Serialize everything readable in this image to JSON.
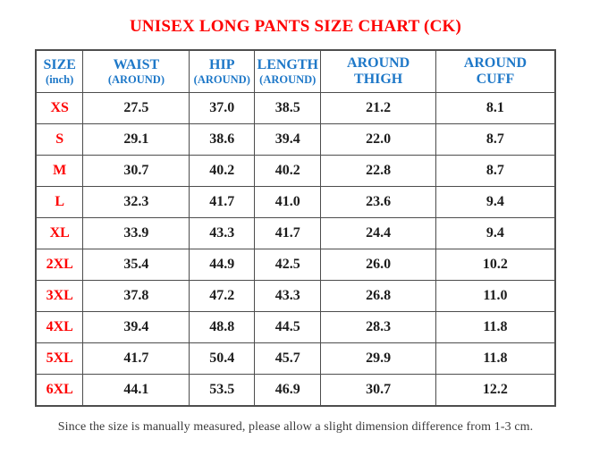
{
  "title": "UNISEX LONG PANTS SIZE CHART (CK)",
  "footer_note": "Since the size is manually measured, please allow a slight dimension difference from 1-3 cm.",
  "colors": {
    "title_red": "#fe0000",
    "header_blue": "#1e78c8",
    "value_black": "#1d1d1d",
    "border_gray": "#4d4d4d",
    "background": "#ffffff"
  },
  "table": {
    "columns": [
      {
        "line1": "SIZE",
        "line2": "(inch)"
      },
      {
        "line1": "WAIST",
        "line2": "(AROUND)"
      },
      {
        "line1": "HIP",
        "line2": "(AROUND)"
      },
      {
        "line1": "LENGTH",
        "line2": "(AROUND)"
      },
      {
        "line1": "AROUND",
        "line2": "THIGH"
      },
      {
        "line1": "AROUND",
        "line2": "CUFF"
      }
    ],
    "rows": [
      {
        "size": "XS",
        "values": [
          "27.5",
          "37.0",
          "38.5",
          "21.2",
          "8.1"
        ]
      },
      {
        "size": "S",
        "values": [
          "29.1",
          "38.6",
          "39.4",
          "22.0",
          "8.7"
        ]
      },
      {
        "size": "M",
        "values": [
          "30.7",
          "40.2",
          "40.2",
          "22.8",
          "8.7"
        ]
      },
      {
        "size": "L",
        "values": [
          "32.3",
          "41.7",
          "41.0",
          "23.6",
          "9.4"
        ]
      },
      {
        "size": "XL",
        "values": [
          "33.9",
          "43.3",
          "41.7",
          "24.4",
          "9.4"
        ]
      },
      {
        "size": "2XL",
        "values": [
          "35.4",
          "44.9",
          "42.5",
          "26.0",
          "10.2"
        ]
      },
      {
        "size": "3XL",
        "values": [
          "37.8",
          "47.2",
          "43.3",
          "26.8",
          "11.0"
        ]
      },
      {
        "size": "4XL",
        "values": [
          "39.4",
          "48.8",
          "44.5",
          "28.3",
          "11.8"
        ]
      },
      {
        "size": "5XL",
        "values": [
          "41.7",
          "50.4",
          "45.7",
          "29.9",
          "11.8"
        ]
      },
      {
        "size": "6XL",
        "values": [
          "44.1",
          "53.5",
          "46.9",
          "30.7",
          "12.2"
        ]
      }
    ]
  },
  "chart_data": {
    "type": "table",
    "title": "UNISEX LONG PANTS SIZE CHART (CK)",
    "unit": "inch",
    "columns": [
      "SIZE (inch)",
      "WAIST (AROUND)",
      "HIP (AROUND)",
      "LENGTH (AROUND)",
      "AROUND THIGH",
      "AROUND CUFF"
    ],
    "rows": [
      [
        "XS",
        27.5,
        37.0,
        38.5,
        21.2,
        8.1
      ],
      [
        "S",
        29.1,
        38.6,
        39.4,
        22.0,
        8.7
      ],
      [
        "M",
        30.7,
        40.2,
        40.2,
        22.8,
        8.7
      ],
      [
        "L",
        32.3,
        41.7,
        41.0,
        23.6,
        9.4
      ],
      [
        "XL",
        33.9,
        43.3,
        41.7,
        24.4,
        9.4
      ],
      [
        "2XL",
        35.4,
        44.9,
        42.5,
        26.0,
        10.2
      ],
      [
        "3XL",
        37.8,
        47.2,
        43.3,
        26.8,
        11.0
      ],
      [
        "4XL",
        39.4,
        48.8,
        44.5,
        28.3,
        11.8
      ],
      [
        "5XL",
        41.7,
        50.4,
        45.7,
        29.9,
        11.8
      ],
      [
        "6XL",
        44.1,
        53.5,
        46.9,
        30.7,
        12.2
      ]
    ],
    "note": "Since the size is manually measured, please allow a slight dimension difference from 1-3 cm."
  }
}
